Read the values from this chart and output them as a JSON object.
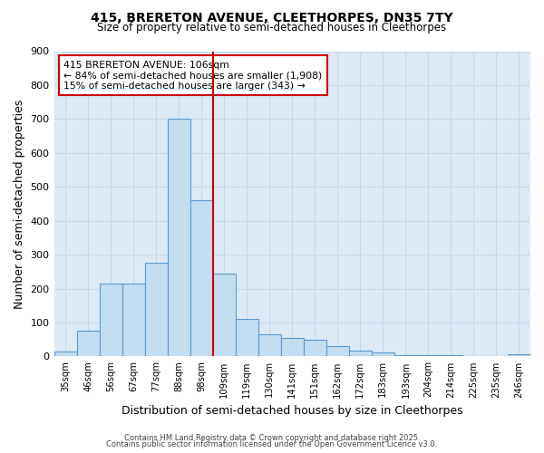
{
  "title_line1": "415, BRERETON AVENUE, CLEETHORPES, DN35 7TY",
  "title_line2": "Size of property relative to semi-detached houses in Cleethorpes",
  "xlabel": "Distribution of semi-detached houses by size in Cleethorpes",
  "ylabel": "Number of semi-detached properties",
  "categories": [
    "35sqm",
    "46sqm",
    "56sqm",
    "67sqm",
    "77sqm",
    "88sqm",
    "98sqm",
    "109sqm",
    "119sqm",
    "130sqm",
    "141sqm",
    "151sqm",
    "162sqm",
    "172sqm",
    "183sqm",
    "193sqm",
    "204sqm",
    "214sqm",
    "225sqm",
    "235sqm",
    "246sqm"
  ],
  "values": [
    15,
    75,
    215,
    215,
    275,
    700,
    460,
    245,
    110,
    65,
    55,
    50,
    30,
    18,
    12,
    5,
    4,
    3,
    2,
    1,
    7
  ],
  "bar_color": "#c5ddf0",
  "bar_edge_color": "#5b9bd5",
  "property_line_index": 7,
  "property_value": "106sqm",
  "smaller_pct": "84%",
  "smaller_count": "1,908",
  "larger_pct": "15%",
  "larger_count": "343",
  "annotation_box_color": "#ffffff",
  "annotation_box_edge": "#cc0000",
  "line_color": "#cc0000",
  "grid_color": "#c5d8ea",
  "background_color": "#ddeaf5",
  "ylim": [
    0,
    900
  ],
  "yticks": [
    0,
    100,
    200,
    300,
    400,
    500,
    600,
    700,
    800,
    900
  ],
  "footnote1": "Contains HM Land Registry data © Crown copyright and database right 2025.",
  "footnote2": "Contains public sector information licensed under the Open Government Licence v3.0."
}
